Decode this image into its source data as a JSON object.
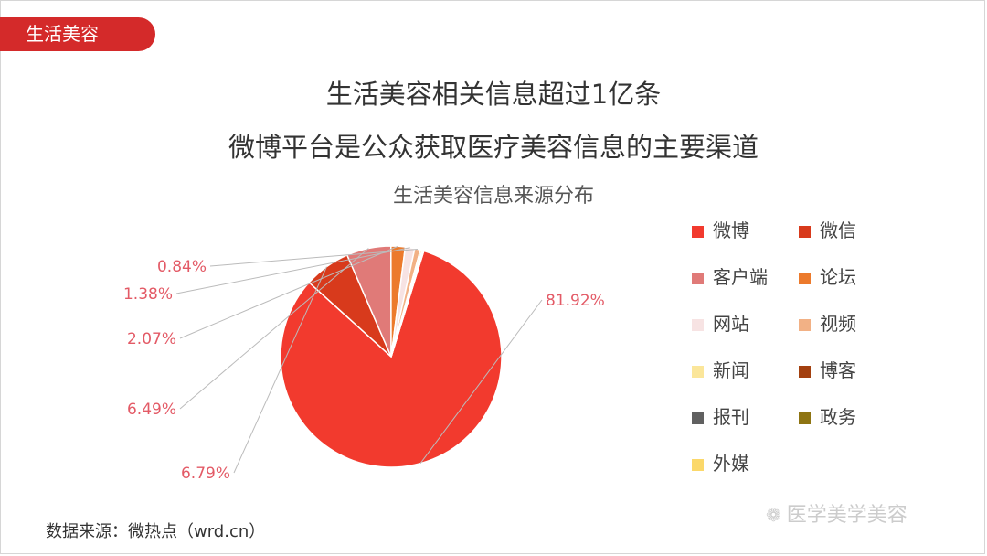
{
  "header": {
    "tag": "生活美容",
    "title_line1": "生活美容相关信息超过1亿条",
    "title_line2": "微博平台是公众获取医疗美容信息的主要渠道"
  },
  "chart_data": {
    "type": "pie",
    "title": "生活美容信息来源分布",
    "slices": [
      {
        "name": "微博",
        "value": 81.92,
        "label": "81.92%",
        "color": "#f23a2e"
      },
      {
        "name": "微信",
        "value": 6.79,
        "label": "6.79%",
        "color": "#d83a1c"
      },
      {
        "name": "客户端",
        "value": 6.49,
        "label": "6.49%",
        "color": "#e07a78"
      },
      {
        "name": "论坛",
        "value": 2.07,
        "label": "2.07%",
        "color": "#ec7a2c"
      },
      {
        "name": "网站",
        "value": 1.38,
        "label": "1.38%",
        "color": "#f7e3e3"
      },
      {
        "name": "视频",
        "value": 0.84,
        "label": "0.84%",
        "color": "#f2b185"
      },
      {
        "name": "新闻",
        "value": 0.25,
        "label": "",
        "color": "#fbe69a"
      },
      {
        "name": "博客",
        "value": 0.13,
        "label": "",
        "color": "#a3400f"
      },
      {
        "name": "报刊",
        "value": 0.07,
        "label": "",
        "color": "#606060"
      },
      {
        "name": "政务",
        "value": 0.04,
        "label": "",
        "color": "#8e7412"
      },
      {
        "name": "外媒",
        "value": 0.02,
        "label": "",
        "color": "#fbd86a"
      }
    ],
    "legend_placement": "right"
  },
  "source": "数据来源：微热点（wrd.cn）",
  "watermark": "医学美学美容"
}
